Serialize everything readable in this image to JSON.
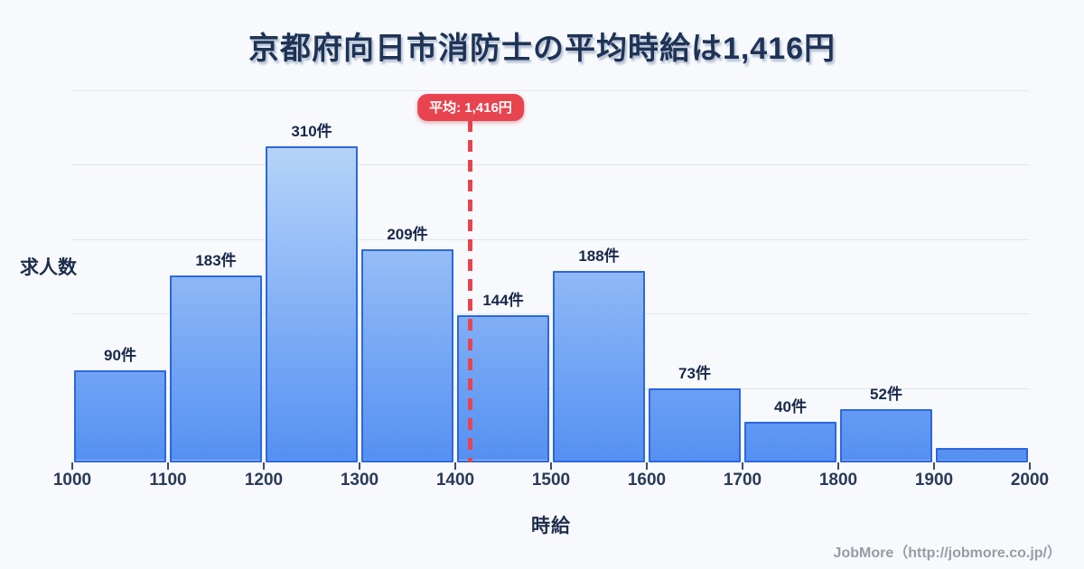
{
  "title": "京都府向日市消防士の平均時給は1,416円",
  "chart_data": {
    "type": "bar",
    "subtype": "histogram",
    "title": "京都府向日市消防士の平均時給は1,416円",
    "xlabel": "時給",
    "ylabel": "求人数",
    "x_ticks": [
      "1000",
      "1100",
      "1200",
      "1300",
      "1400",
      "1500",
      "1600",
      "1700",
      "1800",
      "1900",
      "2000"
    ],
    "bin_edges": [
      1000,
      1100,
      1200,
      1300,
      1400,
      1500,
      1600,
      1700,
      1800,
      1900,
      2000
    ],
    "values": [
      90,
      183,
      310,
      209,
      144,
      188,
      73,
      40,
      52,
      14
    ],
    "bar_labels": [
      "90件",
      "183件",
      "310件",
      "209件",
      "144件",
      "188件",
      "73件",
      "40件",
      "52件",
      ""
    ],
    "average": {
      "value": 1416,
      "label": "平均: 1,416円"
    },
    "xlim": [
      1000,
      2000
    ],
    "ylim": [
      0,
      365
    ],
    "grid": true,
    "gridline_count": 5,
    "legend_position": "none"
  },
  "footer": {
    "credit": "JobMore（http://jobmore.co.jp/）"
  },
  "colors": {
    "background": "#f7f9fc",
    "title_navy": "#1e3355",
    "bar_fill_top": "#c7e0fa",
    "bar_fill_bottom": "#5590f2",
    "bar_border": "#2c67de",
    "average_red": "#e8444f",
    "grid_line": "#dfe6f1",
    "footer_gray": "#969ca6"
  }
}
